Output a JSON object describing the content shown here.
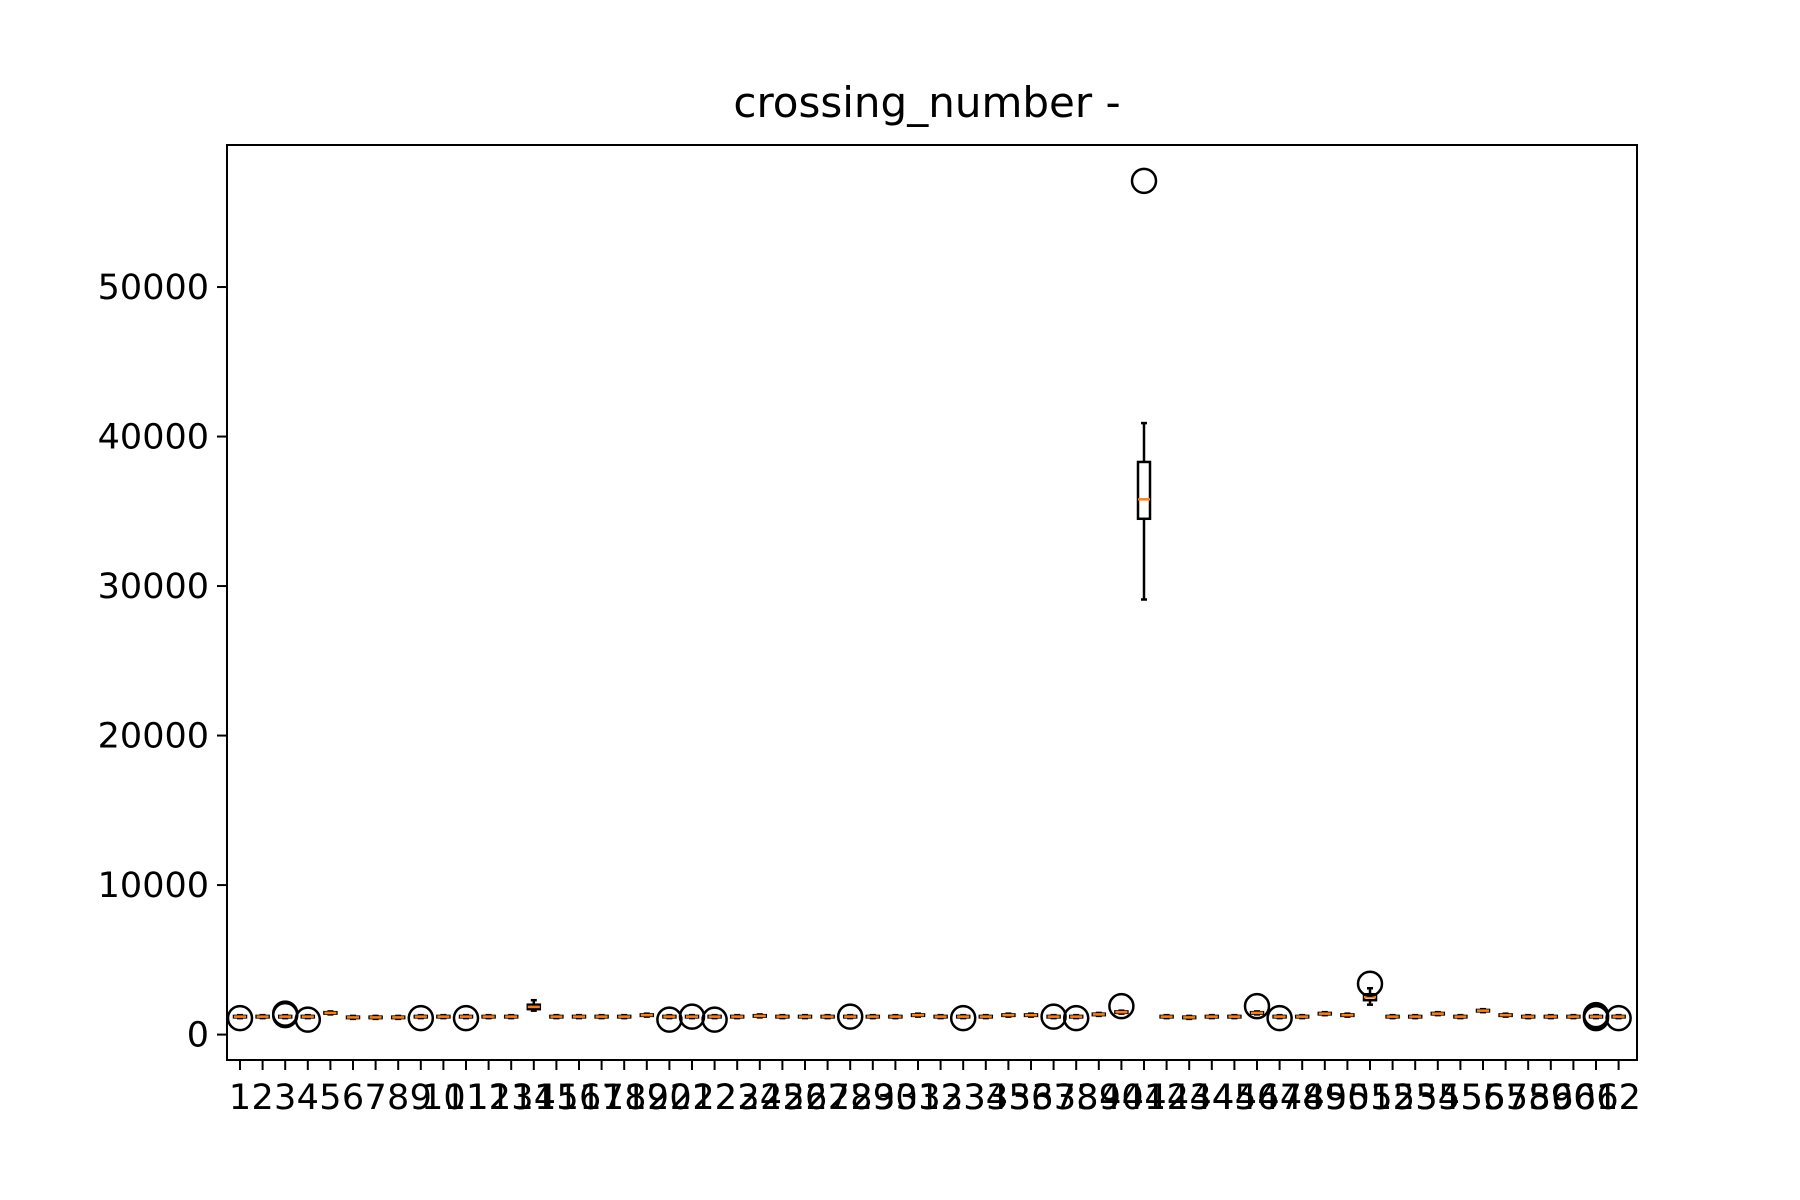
{
  "chart_data": {
    "type": "box",
    "title": "crossing_number -",
    "xlabel": "",
    "ylabel": "",
    "ylim": [
      -1700,
      59500
    ],
    "y_ticks": [
      0,
      10000,
      20000,
      30000,
      40000,
      50000
    ],
    "grid": false,
    "colors": {
      "box": "#000000",
      "median": "#ff7f0e",
      "frame": "#000000"
    },
    "categories": [
      "1",
      "2",
      "3",
      "4",
      "5",
      "6",
      "7",
      "8",
      "9",
      "10",
      "11",
      "12",
      "13",
      "14",
      "15",
      "16",
      "17",
      "18",
      "19",
      "20",
      "21",
      "22",
      "23",
      "24",
      "25",
      "26",
      "27",
      "28",
      "29",
      "30",
      "31",
      "32",
      "33",
      "34",
      "35",
      "36",
      "37",
      "38",
      "39",
      "40",
      "41",
      "42",
      "43",
      "44",
      "45",
      "46",
      "47",
      "48",
      "49",
      "50",
      "51",
      "52",
      "53",
      "54",
      "55",
      "56",
      "57",
      "58",
      "59",
      "60",
      "61",
      "62"
    ],
    "boxes": [
      {
        "q1": 1150,
        "median": 1200,
        "q3": 1250,
        "whislo": 1100,
        "whishi": 1300,
        "fliers": [
          1100
        ]
      },
      {
        "q1": 1150,
        "median": 1200,
        "q3": 1250,
        "whislo": 1100,
        "whishi": 1300,
        "fliers": []
      },
      {
        "q1": 1150,
        "median": 1200,
        "q3": 1250,
        "whislo": 1100,
        "whishi": 1300,
        "fliers": [
          1300,
          1400
        ]
      },
      {
        "q1": 1150,
        "median": 1200,
        "q3": 1250,
        "whislo": 1100,
        "whishi": 1300,
        "fliers": [
          1000
        ]
      },
      {
        "q1": 1400,
        "median": 1450,
        "q3": 1500,
        "whislo": 1350,
        "whishi": 1550,
        "fliers": []
      },
      {
        "q1": 1100,
        "median": 1150,
        "q3": 1200,
        "whislo": 1050,
        "whishi": 1250,
        "fliers": []
      },
      {
        "q1": 1100,
        "median": 1150,
        "q3": 1200,
        "whislo": 1050,
        "whishi": 1250,
        "fliers": []
      },
      {
        "q1": 1100,
        "median": 1150,
        "q3": 1200,
        "whislo": 1050,
        "whishi": 1250,
        "fliers": []
      },
      {
        "q1": 1150,
        "median": 1200,
        "q3": 1250,
        "whislo": 1100,
        "whishi": 1300,
        "fliers": [
          1100
        ]
      },
      {
        "q1": 1150,
        "median": 1200,
        "q3": 1250,
        "whislo": 1100,
        "whishi": 1300,
        "fliers": []
      },
      {
        "q1": 1150,
        "median": 1200,
        "q3": 1250,
        "whislo": 1100,
        "whishi": 1300,
        "fliers": [
          1100
        ]
      },
      {
        "q1": 1150,
        "median": 1200,
        "q3": 1250,
        "whislo": 1100,
        "whishi": 1300,
        "fliers": []
      },
      {
        "q1": 1150,
        "median": 1200,
        "q3": 1250,
        "whislo": 1100,
        "whishi": 1300,
        "fliers": []
      },
      {
        "q1": 1700,
        "median": 1850,
        "q3": 2000,
        "whislo": 1600,
        "whishi": 2300,
        "fliers": []
      },
      {
        "q1": 1150,
        "median": 1200,
        "q3": 1250,
        "whislo": 1100,
        "whishi": 1300,
        "fliers": []
      },
      {
        "q1": 1150,
        "median": 1200,
        "q3": 1250,
        "whislo": 1100,
        "whishi": 1300,
        "fliers": []
      },
      {
        "q1": 1150,
        "median": 1200,
        "q3": 1250,
        "whislo": 1100,
        "whishi": 1300,
        "fliers": []
      },
      {
        "q1": 1150,
        "median": 1200,
        "q3": 1250,
        "whislo": 1100,
        "whishi": 1300,
        "fliers": []
      },
      {
        "q1": 1250,
        "median": 1300,
        "q3": 1350,
        "whislo": 1200,
        "whishi": 1400,
        "fliers": []
      },
      {
        "q1": 1150,
        "median": 1200,
        "q3": 1250,
        "whislo": 1100,
        "whishi": 1300,
        "fliers": [
          1000
        ]
      },
      {
        "q1": 1150,
        "median": 1200,
        "q3": 1250,
        "whislo": 1100,
        "whishi": 1300,
        "fliers": [
          1200
        ]
      },
      {
        "q1": 1150,
        "median": 1200,
        "q3": 1250,
        "whislo": 1100,
        "whishi": 1300,
        "fliers": [
          1000
        ]
      },
      {
        "q1": 1150,
        "median": 1200,
        "q3": 1250,
        "whislo": 1100,
        "whishi": 1300,
        "fliers": []
      },
      {
        "q1": 1200,
        "median": 1250,
        "q3": 1300,
        "whislo": 1150,
        "whishi": 1350,
        "fliers": []
      },
      {
        "q1": 1150,
        "median": 1200,
        "q3": 1250,
        "whislo": 1100,
        "whishi": 1300,
        "fliers": []
      },
      {
        "q1": 1150,
        "median": 1200,
        "q3": 1250,
        "whislo": 1100,
        "whishi": 1300,
        "fliers": []
      },
      {
        "q1": 1150,
        "median": 1200,
        "q3": 1250,
        "whislo": 1100,
        "whishi": 1300,
        "fliers": []
      },
      {
        "q1": 1150,
        "median": 1200,
        "q3": 1250,
        "whislo": 1100,
        "whishi": 1300,
        "fliers": [
          1200
        ]
      },
      {
        "q1": 1150,
        "median": 1200,
        "q3": 1250,
        "whislo": 1100,
        "whishi": 1300,
        "fliers": []
      },
      {
        "q1": 1150,
        "median": 1200,
        "q3": 1250,
        "whislo": 1100,
        "whishi": 1300,
        "fliers": []
      },
      {
        "q1": 1250,
        "median": 1300,
        "q3": 1350,
        "whislo": 1200,
        "whishi": 1400,
        "fliers": []
      },
      {
        "q1": 1150,
        "median": 1200,
        "q3": 1250,
        "whislo": 1100,
        "whishi": 1300,
        "fliers": []
      },
      {
        "q1": 1150,
        "median": 1200,
        "q3": 1250,
        "whislo": 1100,
        "whishi": 1300,
        "fliers": [
          1100
        ]
      },
      {
        "q1": 1150,
        "median": 1200,
        "q3": 1250,
        "whislo": 1100,
        "whishi": 1300,
        "fliers": []
      },
      {
        "q1": 1250,
        "median": 1300,
        "q3": 1350,
        "whislo": 1200,
        "whishi": 1400,
        "fliers": []
      },
      {
        "q1": 1250,
        "median": 1300,
        "q3": 1350,
        "whislo": 1200,
        "whishi": 1400,
        "fliers": []
      },
      {
        "q1": 1150,
        "median": 1200,
        "q3": 1250,
        "whislo": 1100,
        "whishi": 1300,
        "fliers": [
          1200
        ]
      },
      {
        "q1": 1150,
        "median": 1200,
        "q3": 1250,
        "whislo": 1100,
        "whishi": 1300,
        "fliers": [
          1100
        ]
      },
      {
        "q1": 1300,
        "median": 1350,
        "q3": 1400,
        "whislo": 1250,
        "whishi": 1450,
        "fliers": []
      },
      {
        "q1": 1450,
        "median": 1500,
        "q3": 1550,
        "whislo": 1400,
        "whishi": 1600,
        "fliers": [
          1900
        ]
      },
      {
        "q1": 34500,
        "median": 35800,
        "q3": 38300,
        "whislo": 29100,
        "whishi": 40900,
        "fliers": [
          57100
        ]
      },
      {
        "q1": 1150,
        "median": 1200,
        "q3": 1250,
        "whislo": 1100,
        "whishi": 1300,
        "fliers": []
      },
      {
        "q1": 1100,
        "median": 1150,
        "q3": 1200,
        "whislo": 1050,
        "whishi": 1250,
        "fliers": []
      },
      {
        "q1": 1150,
        "median": 1200,
        "q3": 1250,
        "whislo": 1100,
        "whishi": 1300,
        "fliers": []
      },
      {
        "q1": 1150,
        "median": 1200,
        "q3": 1250,
        "whislo": 1100,
        "whishi": 1300,
        "fliers": []
      },
      {
        "q1": 1400,
        "median": 1450,
        "q3": 1500,
        "whislo": 1350,
        "whishi": 1550,
        "fliers": [
          1900
        ]
      },
      {
        "q1": 1150,
        "median": 1200,
        "q3": 1250,
        "whislo": 1100,
        "whishi": 1300,
        "fliers": [
          1100
        ]
      },
      {
        "q1": 1150,
        "median": 1200,
        "q3": 1250,
        "whislo": 1100,
        "whishi": 1300,
        "fliers": []
      },
      {
        "q1": 1350,
        "median": 1400,
        "q3": 1450,
        "whislo": 1300,
        "whishi": 1500,
        "fliers": []
      },
      {
        "q1": 1250,
        "median": 1300,
        "q3": 1350,
        "whislo": 1200,
        "whishi": 1400,
        "fliers": []
      },
      {
        "q1": 2300,
        "median": 2500,
        "q3": 2700,
        "whislo": 2000,
        "whishi": 3100,
        "fliers": [
          3400
        ]
      },
      {
        "q1": 1150,
        "median": 1200,
        "q3": 1250,
        "whislo": 1100,
        "whishi": 1300,
        "fliers": []
      },
      {
        "q1": 1150,
        "median": 1200,
        "q3": 1250,
        "whislo": 1100,
        "whishi": 1300,
        "fliers": []
      },
      {
        "q1": 1350,
        "median": 1400,
        "q3": 1450,
        "whislo": 1300,
        "whishi": 1500,
        "fliers": []
      },
      {
        "q1": 1150,
        "median": 1200,
        "q3": 1250,
        "whislo": 1100,
        "whishi": 1300,
        "fliers": []
      },
      {
        "q1": 1550,
        "median": 1600,
        "q3": 1650,
        "whislo": 1500,
        "whishi": 1700,
        "fliers": []
      },
      {
        "q1": 1250,
        "median": 1300,
        "q3": 1350,
        "whislo": 1200,
        "whishi": 1400,
        "fliers": []
      },
      {
        "q1": 1150,
        "median": 1200,
        "q3": 1250,
        "whislo": 1100,
        "whishi": 1300,
        "fliers": []
      },
      {
        "q1": 1150,
        "median": 1200,
        "q3": 1250,
        "whislo": 1100,
        "whishi": 1300,
        "fliers": []
      },
      {
        "q1": 1150,
        "median": 1200,
        "q3": 1250,
        "whislo": 1100,
        "whishi": 1300,
        "fliers": []
      },
      {
        "q1": 1150,
        "median": 1200,
        "q3": 1250,
        "whislo": 1100,
        "whishi": 1300,
        "fliers": [
          1100,
          1200,
          1300
        ]
      },
      {
        "q1": 1150,
        "median": 1200,
        "q3": 1250,
        "whislo": 1100,
        "whishi": 1300,
        "fliers": [
          1100
        ]
      }
    ]
  }
}
